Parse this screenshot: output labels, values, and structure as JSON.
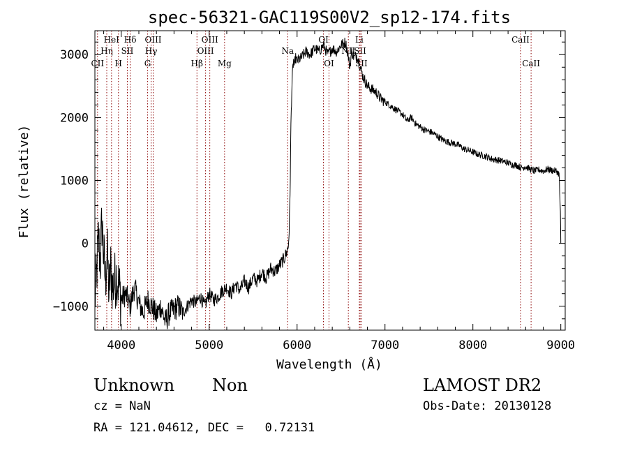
{
  "chart_data": {
    "type": "line",
    "title": "spec-56321-GAC119S00V2_sp12-174.fits",
    "xlabel": "Wavelength (Å)",
    "ylabel": "Flux (relative)",
    "xlim": [
      3700,
      9050
    ],
    "ylim": [
      -1380,
      3380
    ],
    "xticks": [
      4000,
      5000,
      6000,
      7000,
      8000,
      9000
    ],
    "xtick_labels": [
      "4000",
      "5000",
      "6000",
      "7000",
      "8000",
      "9000"
    ],
    "yticks": [
      -1000,
      0,
      1000,
      2000,
      3000
    ],
    "ytick_labels": [
      "−1000",
      "0",
      "1000",
      "2000",
      "3000"
    ],
    "grid": false,
    "line_color": "#000000",
    "marker_color": "#8b0000",
    "series": [
      {
        "x": [
          3700,
          3720,
          3740,
          3760,
          3780,
          3800,
          3820,
          3840,
          3860,
          3880,
          3900,
          3950,
          4000,
          4050,
          4100,
          4150,
          4200,
          4250,
          4300,
          4350,
          4400,
          4450,
          4500,
          4550,
          4600,
          4650,
          4700,
          4750,
          4800,
          4850,
          4900,
          4950,
          5000,
          5050,
          5100,
          5150,
          5200,
          5250,
          5300,
          5350,
          5400,
          5450,
          5500,
          5550,
          5600,
          5650,
          5700,
          5750,
          5800,
          5850,
          5880,
          5900,
          5910,
          5920,
          5925,
          5930,
          5940,
          5950,
          5960,
          5970,
          5980,
          6000,
          6050,
          6100,
          6150,
          6200,
          6250,
          6300,
          6350,
          6400,
          6450,
          6500,
          6550,
          6580,
          6600,
          6620,
          6650,
          6680,
          6700,
          6720,
          6750,
          6800,
          6850,
          6900,
          6950,
          7000,
          7050,
          7100,
          7150,
          7200,
          7250,
          7300,
          7350,
          7400,
          7450,
          7500,
          7550,
          7600,
          7650,
          7700,
          7750,
          7800,
          7850,
          7900,
          7950,
          8000,
          8050,
          8100,
          8150,
          8200,
          8250,
          8300,
          8350,
          8400,
          8450,
          8500,
          8550,
          8600,
          8650,
          8700,
          8750,
          8800,
          8850,
          8900,
          8950,
          8980,
          8995,
          9000
        ],
        "y": [
          -900,
          -500,
          100,
          -300,
          350,
          -200,
          -600,
          -100,
          -800,
          -400,
          -700,
          -500,
          -900,
          -800,
          -1000,
          -700,
          -950,
          -1100,
          -900,
          -1000,
          -1150,
          -1000,
          -1250,
          -1100,
          -1050,
          -1000,
          -1100,
          -1000,
          -900,
          -950,
          -850,
          -1000,
          -800,
          -900,
          -850,
          -750,
          -700,
          -800,
          -650,
          -750,
          -600,
          -700,
          -550,
          -600,
          -450,
          -550,
          -400,
          -450,
          -350,
          -250,
          -150,
          -50,
          200,
          800,
          1300,
          1900,
          2450,
          2750,
          2900,
          2800,
          2950,
          2900,
          2950,
          3050,
          3000,
          3100,
          3050,
          3150,
          3000,
          3100,
          3050,
          3150,
          3200,
          3000,
          2800,
          3050,
          2950,
          3000,
          2900,
          2800,
          2650,
          2500,
          2450,
          2400,
          2300,
          2250,
          2200,
          2150,
          2100,
          2050,
          1950,
          2000,
          1900,
          1850,
          1800,
          1780,
          1750,
          1700,
          1650,
          1620,
          1600,
          1580,
          1550,
          1500,
          1480,
          1450,
          1420,
          1400,
          1380,
          1350,
          1330,
          1320,
          1300,
          1280,
          1250,
          1240,
          1200,
          1220,
          1180,
          1150,
          1170,
          1150,
          1180,
          1160,
          1150,
          1100,
          500,
          0
        ]
      }
    ],
    "lines": [
      {
        "label": "CII",
        "x": 3730,
        "row": 3
      },
      {
        "label": "Hη",
        "x": 3835,
        "row": 2
      },
      {
        "label": "HeI",
        "x": 3889,
        "row": 1
      },
      {
        "label": "H",
        "x": 3968,
        "row": 3
      },
      {
        "label": "SII",
        "x": 4069,
        "row": 2
      },
      {
        "label": "Hδ",
        "x": 4102,
        "row": 1
      },
      {
        "label": "G",
        "x": 4300,
        "row": 3
      },
      {
        "label": "Hγ",
        "x": 4340,
        "row": 2
      },
      {
        "label": "OIII",
        "x": 4363,
        "row": 1
      },
      {
        "label": "Hβ",
        "x": 4861,
        "row": 3
      },
      {
        "label": "OIII",
        "x": 4959,
        "row": 2
      },
      {
        "label": "OIII",
        "x": 5007,
        "row": 1
      },
      {
        "label": "Mg",
        "x": 5175,
        "row": 3
      },
      {
        "label": "Na",
        "x": 5893,
        "row": 2
      },
      {
        "label": "OI",
        "x": 6300,
        "row": 1
      },
      {
        "label": "OI",
        "x": 6363,
        "row": 3
      },
      {
        "label": "NII",
        "x": 6583,
        "row": 2
      },
      {
        "label": "Li",
        "x": 6708,
        "row": 1
      },
      {
        "label": "SII",
        "x": 6717,
        "row": 2
      },
      {
        "label": "SII",
        "x": 6731,
        "row": 3
      },
      {
        "label": "CaII",
        "x": 8542,
        "row": 1
      },
      {
        "label": "CaII",
        "x": 8662,
        "row": 3
      }
    ]
  },
  "footer": {
    "class_label": "Unknown",
    "subclass_label": "Non",
    "survey": "LAMOST DR2",
    "cz": "cz = NaN",
    "obs_date": "Obs-Date: 20130128",
    "coords": "RA = 121.04612, DEC =   0.72131"
  }
}
